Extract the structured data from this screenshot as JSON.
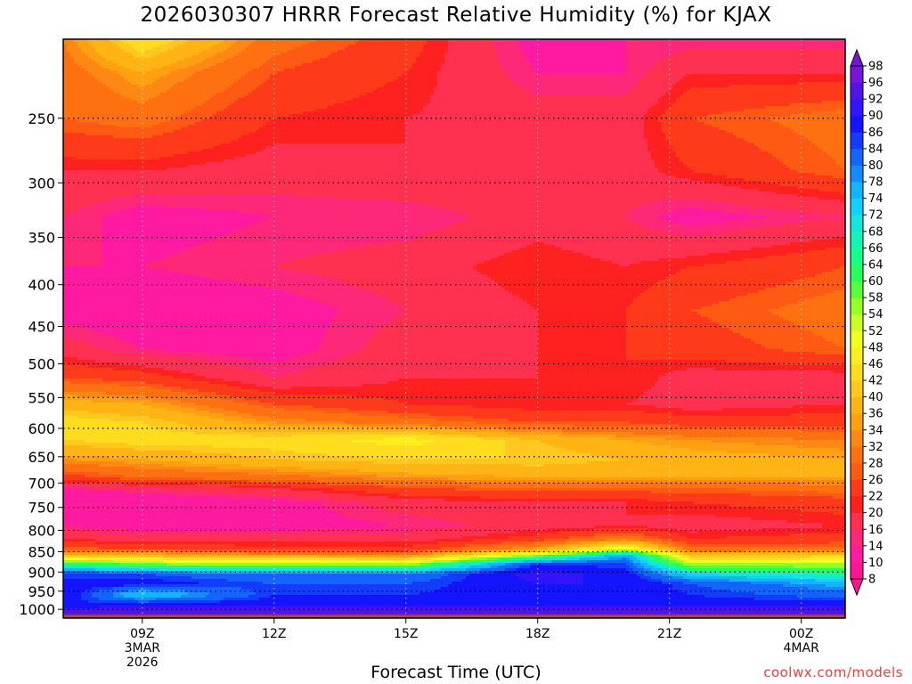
{
  "title": "2026030307 HRRR Forecast Relative Humidity (%) for KJAX",
  "credit": "coolwx.com/models",
  "chart_data": {
    "type": "heatmap",
    "title": "2026030307 HRRR Forecast Relative Humidity (%) for KJAX",
    "xlabel": "Forecast Time (UTC)",
    "ylabel": "",
    "x_range_hours": [
      7.2,
      25.0
    ],
    "x_ticks": [
      {
        "hour": 9,
        "lines": [
          "09Z",
          "3MAR",
          "2026"
        ]
      },
      {
        "hour": 12,
        "lines": [
          "12Z"
        ]
      },
      {
        "hour": 15,
        "lines": [
          "15Z"
        ]
      },
      {
        "hour": 18,
        "lines": [
          "18Z"
        ]
      },
      {
        "hour": 21,
        "lines": [
          "21Z"
        ]
      },
      {
        "hour": 24,
        "lines": [
          "00Z",
          "4MAR"
        ]
      }
    ],
    "y_range_hpa": [
      1025,
      200
    ],
    "y_scale": "log",
    "y_ticks": [
      250,
      300,
      350,
      400,
      450,
      500,
      550,
      600,
      650,
      700,
      750,
      800,
      850,
      900,
      950,
      1000
    ],
    "grid": true,
    "colorbar": {
      "levels": [
        8,
        10,
        14,
        16,
        20,
        22,
        26,
        28,
        32,
        34,
        36,
        40,
        42,
        46,
        48,
        52,
        54,
        58,
        60,
        64,
        66,
        68,
        72,
        74,
        78,
        80,
        84,
        86,
        90,
        92,
        96,
        98
      ],
      "colors": [
        "#ff1493",
        "#ff1aa0",
        "#ff2878",
        "#ff3050",
        "#ff2020",
        "#ff3a1a",
        "#ff5a14",
        "#ff7010",
        "#ff8814",
        "#ffa010",
        "#ffb414",
        "#ffc81e",
        "#ffdc1e",
        "#ffee1e",
        "#f0ff1e",
        "#c8ff28",
        "#96ff28",
        "#5aff3c",
        "#28ff5a",
        "#14ff8c",
        "#14f5b4",
        "#14e6dc",
        "#14d2ff",
        "#14b4ff",
        "#148cff",
        "#1464ff",
        "#143cff",
        "#1414ff",
        "#3214ff",
        "#5014e6",
        "#7814dc"
      ],
      "extend": "both",
      "position": "right"
    },
    "profiles": [
      {
        "hour": 7.2,
        "rh": [
          [
            1015,
            98
          ],
          [
            985,
            86
          ],
          [
            960,
            90
          ],
          [
            930,
            88
          ],
          [
            905,
            84
          ],
          [
            880,
            64
          ],
          [
            860,
            40
          ],
          [
            845,
            28
          ],
          [
            820,
            20
          ],
          [
            790,
            14
          ],
          [
            740,
            10
          ],
          [
            710,
            14
          ],
          [
            690,
            24
          ],
          [
            655,
            34
          ],
          [
            620,
            42
          ],
          [
            590,
            44
          ],
          [
            560,
            38
          ],
          [
            520,
            26
          ],
          [
            480,
            18
          ],
          [
            430,
            12
          ],
          [
            380,
            14
          ],
          [
            330,
            16
          ],
          [
            290,
            20
          ],
          [
            250,
            28
          ],
          [
            220,
            30
          ],
          [
            200,
            32
          ]
        ]
      },
      {
        "hour": 9.0,
        "rh": [
          [
            1015,
            98
          ],
          [
            985,
            88
          ],
          [
            960,
            72
          ],
          [
            930,
            88
          ],
          [
            905,
            84
          ],
          [
            880,
            58
          ],
          [
            860,
            40
          ],
          [
            845,
            26
          ],
          [
            820,
            18
          ],
          [
            790,
            12
          ],
          [
            740,
            10
          ],
          [
            710,
            16
          ],
          [
            690,
            28
          ],
          [
            655,
            36
          ],
          [
            620,
            44
          ],
          [
            590,
            42
          ],
          [
            560,
            36
          ],
          [
            520,
            24
          ],
          [
            480,
            14
          ],
          [
            430,
            10
          ],
          [
            380,
            14
          ],
          [
            330,
            12
          ],
          [
            290,
            20
          ],
          [
            250,
            30
          ],
          [
            220,
            36
          ],
          [
            200,
            46
          ]
        ]
      },
      {
        "hour": 12.0,
        "rh": [
          [
            1015,
            98
          ],
          [
            985,
            88
          ],
          [
            960,
            86
          ],
          [
            930,
            84
          ],
          [
            905,
            80
          ],
          [
            880,
            56
          ],
          [
            860,
            36
          ],
          [
            845,
            24
          ],
          [
            820,
            18
          ],
          [
            790,
            12
          ],
          [
            740,
            12
          ],
          [
            710,
            20
          ],
          [
            690,
            30
          ],
          [
            655,
            40
          ],
          [
            620,
            44
          ],
          [
            590,
            34
          ],
          [
            560,
            26
          ],
          [
            520,
            16
          ],
          [
            480,
            12
          ],
          [
            430,
            12
          ],
          [
            380,
            16
          ],
          [
            330,
            14
          ],
          [
            290,
            18
          ],
          [
            250,
            22
          ],
          [
            220,
            26
          ],
          [
            200,
            30
          ]
        ]
      },
      {
        "hour": 15.0,
        "rh": [
          [
            1015,
            98
          ],
          [
            985,
            88
          ],
          [
            960,
            86
          ],
          [
            930,
            84
          ],
          [
            905,
            80
          ],
          [
            880,
            54
          ],
          [
            860,
            34
          ],
          [
            845,
            24
          ],
          [
            820,
            18
          ],
          [
            790,
            14
          ],
          [
            740,
            18
          ],
          [
            710,
            26
          ],
          [
            690,
            34
          ],
          [
            655,
            42
          ],
          [
            620,
            48
          ],
          [
            590,
            30
          ],
          [
            560,
            22
          ],
          [
            520,
            20
          ],
          [
            480,
            18
          ],
          [
            430,
            16
          ],
          [
            380,
            18
          ],
          [
            330,
            14
          ],
          [
            290,
            20
          ],
          [
            250,
            20
          ],
          [
            220,
            22
          ],
          [
            200,
            24
          ]
        ]
      },
      {
        "hour": 18.0,
        "rh": [
          [
            1015,
            98
          ],
          [
            985,
            88
          ],
          [
            960,
            88
          ],
          [
            930,
            90
          ],
          [
            905,
            92
          ],
          [
            880,
            86
          ],
          [
            860,
            58
          ],
          [
            845,
            36
          ],
          [
            820,
            24
          ],
          [
            790,
            18
          ],
          [
            740,
            20
          ],
          [
            710,
            28
          ],
          [
            690,
            36
          ],
          [
            655,
            42
          ],
          [
            620,
            40
          ],
          [
            590,
            26
          ],
          [
            560,
            20
          ],
          [
            520,
            20
          ],
          [
            480,
            20
          ],
          [
            430,
            20
          ],
          [
            380,
            22
          ],
          [
            330,
            18
          ],
          [
            290,
            20
          ],
          [
            250,
            18
          ],
          [
            220,
            14
          ],
          [
            200,
            12
          ]
        ]
      },
      {
        "hour": 20.0,
        "rh": [
          [
            1015,
            98
          ],
          [
            985,
            88
          ],
          [
            960,
            88
          ],
          [
            930,
            90
          ],
          [
            905,
            88
          ],
          [
            880,
            84
          ],
          [
            860,
            78
          ],
          [
            845,
            54
          ],
          [
            820,
            32
          ],
          [
            790,
            20
          ],
          [
            740,
            20
          ],
          [
            710,
            28
          ],
          [
            690,
            36
          ],
          [
            655,
            40
          ],
          [
            620,
            36
          ],
          [
            590,
            26
          ],
          [
            560,
            20
          ],
          [
            520,
            22
          ],
          [
            480,
            22
          ],
          [
            430,
            22
          ],
          [
            380,
            20
          ],
          [
            330,
            16
          ],
          [
            290,
            18
          ],
          [
            250,
            18
          ],
          [
            220,
            14
          ],
          [
            200,
            14
          ]
        ]
      },
      {
        "hour": 21.5,
        "rh": [
          [
            1015,
            98
          ],
          [
            985,
            88
          ],
          [
            960,
            86
          ],
          [
            930,
            84
          ],
          [
            905,
            72
          ],
          [
            880,
            54
          ],
          [
            860,
            40
          ],
          [
            845,
            30
          ],
          [
            820,
            22
          ],
          [
            790,
            18
          ],
          [
            740,
            22
          ],
          [
            710,
            28
          ],
          [
            690,
            36
          ],
          [
            655,
            38
          ],
          [
            620,
            34
          ],
          [
            590,
            24
          ],
          [
            560,
            18
          ],
          [
            520,
            18
          ],
          [
            480,
            24
          ],
          [
            430,
            26
          ],
          [
            380,
            22
          ],
          [
            330,
            12
          ],
          [
            290,
            22
          ],
          [
            250,
            26
          ],
          [
            220,
            20
          ],
          [
            200,
            14
          ]
        ]
      },
      {
        "hour": 25.0,
        "rh": [
          [
            1015,
            98
          ],
          [
            985,
            88
          ],
          [
            960,
            82
          ],
          [
            930,
            76
          ],
          [
            905,
            66
          ],
          [
            880,
            54
          ],
          [
            860,
            42
          ],
          [
            845,
            30
          ],
          [
            820,
            24
          ],
          [
            790,
            20
          ],
          [
            740,
            24
          ],
          [
            710,
            30
          ],
          [
            690,
            36
          ],
          [
            655,
            36
          ],
          [
            620,
            32
          ],
          [
            590,
            24
          ],
          [
            560,
            20
          ],
          [
            520,
            18
          ],
          [
            480,
            28
          ],
          [
            430,
            30
          ],
          [
            380,
            26
          ],
          [
            330,
            16
          ],
          [
            290,
            28
          ],
          [
            250,
            30
          ],
          [
            220,
            20
          ],
          [
            200,
            14
          ]
        ]
      }
    ],
    "surface_band_color": "#a0522d"
  },
  "xlabel": "Forecast Time (UTC)"
}
